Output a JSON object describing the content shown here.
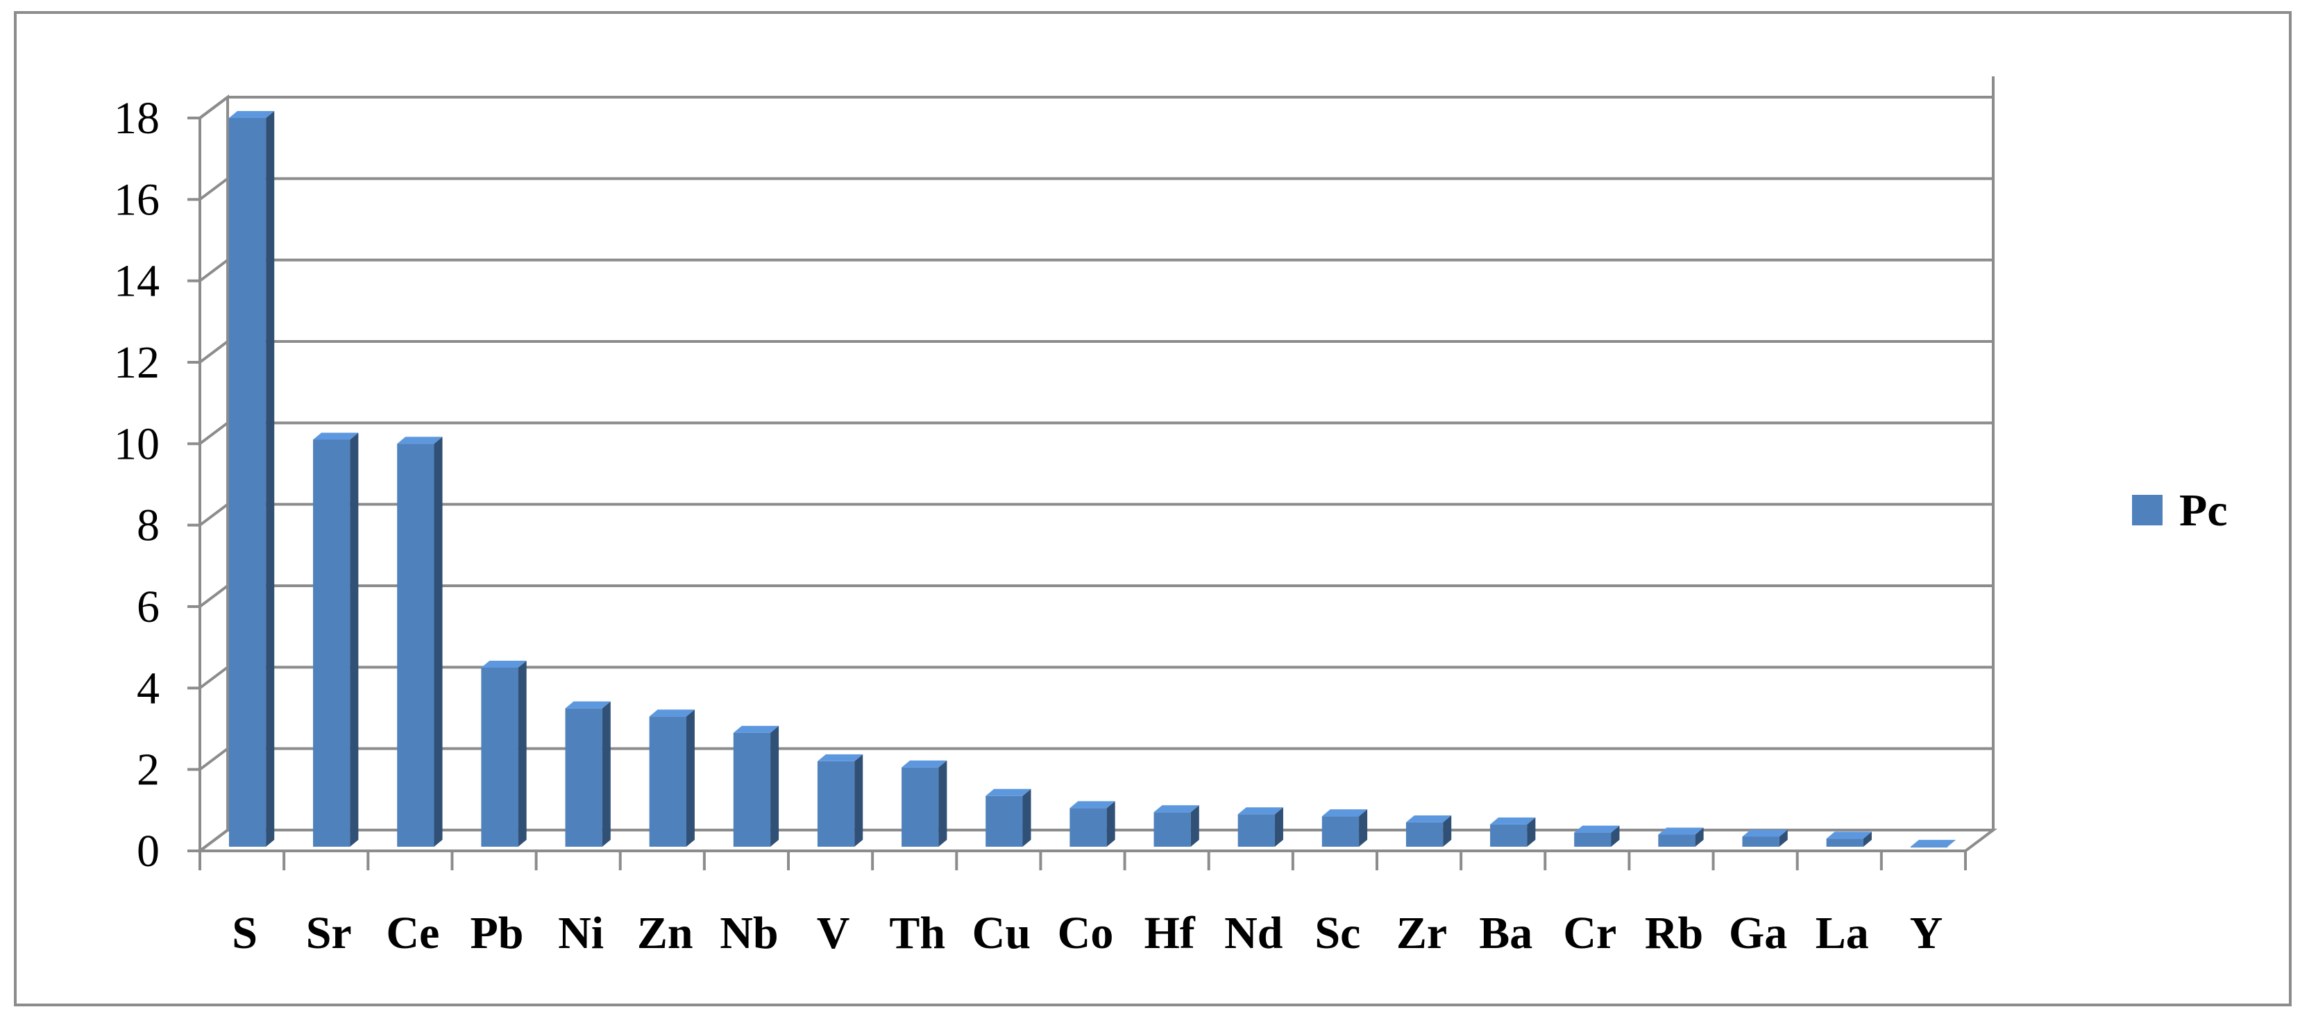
{
  "chart_data": {
    "type": "bar",
    "categories": [
      "S",
      "Sr",
      "Ce",
      "Pb",
      "Ni",
      "Zn",
      "Nb",
      "V",
      "Th",
      "Cu",
      "Co",
      "Hf",
      "Nd",
      "Sc",
      "Zr",
      "Ba",
      "Cr",
      "Rb",
      "Ga",
      "La",
      "Y"
    ],
    "series": [
      {
        "name": "Pc",
        "values": [
          18.0,
          10.1,
          10.0,
          4.5,
          3.5,
          3.3,
          2.9,
          2.2,
          2.05,
          1.35,
          1.05,
          0.95,
          0.9,
          0.85,
          0.7,
          0.65,
          0.45,
          0.4,
          0.35,
          0.3,
          0.1
        ],
        "color": "#4f81bd"
      }
    ],
    "yticks": [
      0,
      2,
      4,
      6,
      8,
      10,
      12,
      14,
      16,
      18
    ],
    "ylim": [
      0,
      18
    ],
    "grid": true,
    "legend": "right",
    "style": "3d-column"
  }
}
